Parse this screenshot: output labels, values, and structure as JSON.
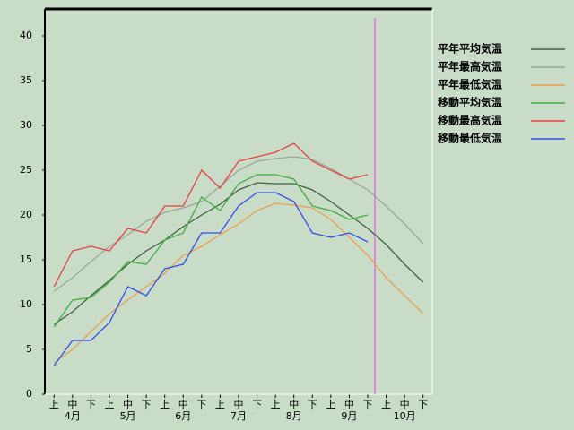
{
  "chart_data": {
    "type": "line",
    "categories": [
      "上",
      "中",
      "下",
      "上",
      "中",
      "下",
      "上",
      "中",
      "下",
      "上",
      "中",
      "下",
      "上",
      "中",
      "下",
      "上",
      "中",
      "下",
      "上",
      "中",
      "下"
    ],
    "months": [
      "4月",
      "5月",
      "6月",
      "7月",
      "8月",
      "9月",
      "10月"
    ],
    "ylim": [
      0,
      43
    ],
    "yticks": [
      0,
      5,
      10,
      15,
      20,
      25,
      30,
      35,
      40
    ],
    "marker_category": 17,
    "marker_color": "#e070e0",
    "series": [
      {
        "name": "平年平均気温",
        "color": "#406040",
        "values": [
          7.8,
          9.2,
          11,
          12.7,
          14.5,
          16,
          17.2,
          18.7,
          20,
          21.2,
          22.8,
          23.6,
          23.5,
          23.5,
          22.8,
          21.5,
          20,
          18.5,
          16.7,
          14.5,
          12.5
        ]
      },
      {
        "name": "平年最高気温",
        "color": "#98a898",
        "values": [
          11.5,
          13,
          14.8,
          16.5,
          17.8,
          19.3,
          20.3,
          20.8,
          21.5,
          23.2,
          25,
          26,
          26.3,
          26.5,
          26.2,
          25.2,
          24,
          22.8,
          21,
          19,
          16.8
        ]
      },
      {
        "name": "平年最低気温",
        "color": "#e8a050",
        "values": [
          3.5,
          5,
          7,
          9,
          10.5,
          12,
          13.5,
          15.5,
          16.5,
          17.8,
          19,
          20.5,
          21.3,
          21.1,
          20.8,
          19.5,
          17.5,
          15.5,
          13,
          11,
          9
        ]
      },
      {
        "name": "移動平均気温",
        "color": "#40b040",
        "values": [
          7.5,
          10.5,
          10.8,
          12.5,
          14.8,
          14.5,
          17.2,
          18,
          22,
          20.5,
          23.5,
          24.5,
          24.5,
          24,
          21,
          20.5,
          19.5,
          20,
          null,
          null,
          null
        ]
      },
      {
        "name": "移動最高気温",
        "color": "#e84040",
        "values": [
          12,
          16,
          16.5,
          16,
          18.5,
          18,
          21,
          21,
          25,
          23,
          26,
          26.5,
          27,
          28,
          26,
          25,
          24,
          24.5,
          null,
          null,
          null
        ]
      },
      {
        "name": "移動最低気温",
        "color": "#3050e8",
        "values": [
          3.2,
          6,
          6,
          8,
          12,
          11,
          14,
          14.5,
          18,
          18,
          21,
          22.5,
          22.5,
          21.5,
          18,
          17.5,
          18,
          17,
          null,
          null,
          null
        ]
      }
    ]
  }
}
